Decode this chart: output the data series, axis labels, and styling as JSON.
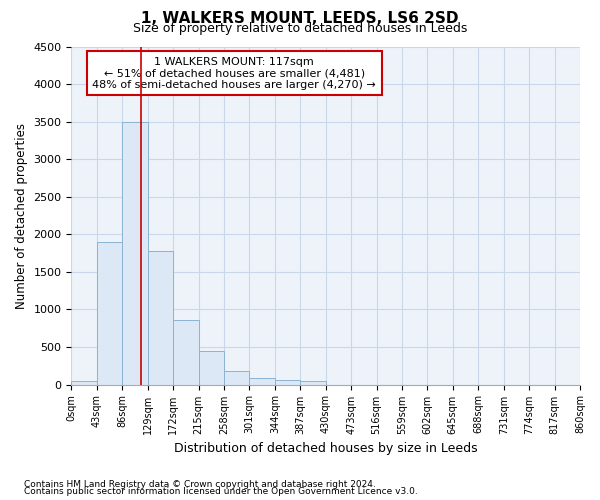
{
  "title": "1, WALKERS MOUNT, LEEDS, LS6 2SD",
  "subtitle": "Size of property relative to detached houses in Leeds",
  "xlabel": "Distribution of detached houses by size in Leeds",
  "ylabel": "Number of detached properties",
  "property_size": 117,
  "annotation_line1": "1 WALKERS MOUNT: 117sqm",
  "annotation_line2": "← 51% of detached houses are smaller (4,481)",
  "annotation_line3": "48% of semi-detached houses are larger (4,270) →",
  "footnote1": "Contains HM Land Registry data © Crown copyright and database right 2024.",
  "footnote2": "Contains public sector information licensed under the Open Government Licence v3.0.",
  "bin_edges": [
    0,
    43,
    86,
    129,
    172,
    215,
    258,
    301,
    344,
    387,
    430,
    473,
    516,
    559,
    602,
    645,
    688,
    731,
    774,
    817,
    860
  ],
  "bar_heights": [
    50,
    1900,
    3500,
    1780,
    860,
    450,
    175,
    90,
    60,
    50,
    0,
    0,
    0,
    0,
    0,
    0,
    0,
    0,
    0,
    0
  ],
  "bar_color": "#dce8f5",
  "bar_edgecolor": "#8ab4d4",
  "redline_color": "#cc0000",
  "annotation_box_edgecolor": "#cc0000",
  "grid_color": "#c8d8ea",
  "background_color": "#eef3fa",
  "ylim": [
    0,
    4500
  ],
  "yticks": [
    0,
    500,
    1000,
    1500,
    2000,
    2500,
    3000,
    3500,
    4000,
    4500
  ]
}
